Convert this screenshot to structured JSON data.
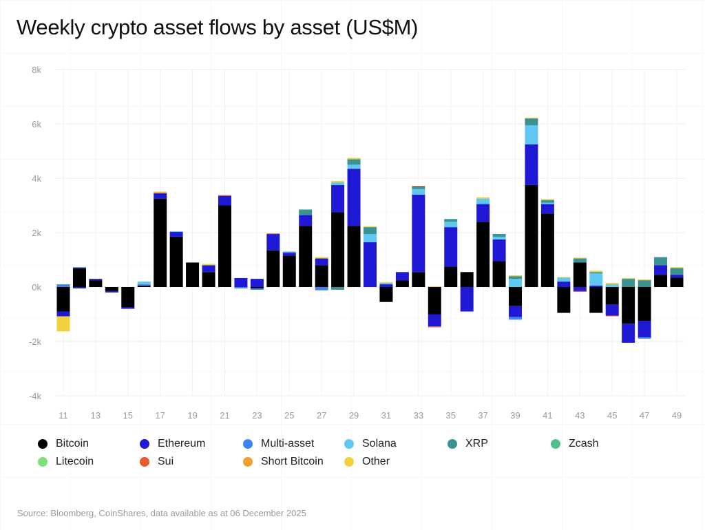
{
  "chart_data": {
    "type": "bar",
    "stacked": true,
    "title": "Weekly crypto asset flows by asset (US$M)",
    "source": "Source: Bloomberg, CoinShares, data available as at 06 December 2025",
    "ylim": [
      -4000,
      8000
    ],
    "yticks": [
      -4000,
      -2000,
      0,
      2000,
      4000,
      6000,
      8000
    ],
    "ytick_labels": [
      "-4k",
      "-2k",
      "0k",
      "2k",
      "4k",
      "6k",
      "8k"
    ],
    "grid": true,
    "legend_position": "bottom",
    "categories": [
      11,
      12,
      13,
      14,
      15,
      16,
      17,
      18,
      19,
      20,
      21,
      22,
      23,
      24,
      25,
      26,
      27,
      28,
      29,
      30,
      31,
      32,
      33,
      34,
      35,
      36,
      37,
      38,
      39,
      40,
      41,
      42,
      43,
      44,
      45,
      46,
      47,
      48,
      49
    ],
    "xtick_labels": [
      "11",
      "13",
      "15",
      "17",
      "19",
      "21",
      "23",
      "25",
      "27",
      "29",
      "31",
      "33",
      "35",
      "37",
      "39",
      "41",
      "43",
      "45",
      "47",
      "49"
    ],
    "series": [
      {
        "name": "Bitcoin",
        "color": "#000000",
        "values": [
          -900,
          700,
          250,
          -150,
          -750,
          50,
          3250,
          1850,
          900,
          550,
          3000,
          0,
          -50,
          1350,
          1150,
          2250,
          800,
          2750,
          2250,
          0,
          -550,
          250,
          550,
          -1000,
          750,
          550,
          2400,
          950,
          -700,
          3750,
          2700,
          -950,
          900,
          -950,
          -650,
          -1350,
          -1250,
          450,
          350
        ]
      },
      {
        "name": "Ethereum",
        "color": "#1f19d6",
        "values": [
          -180,
          -50,
          50,
          -50,
          -50,
          0,
          200,
          180,
          0,
          250,
          350,
          330,
          300,
          600,
          100,
          400,
          250,
          1000,
          2100,
          1650,
          100,
          300,
          2850,
          -450,
          1450,
          -900,
          650,
          800,
          -400,
          1500,
          350,
          200,
          -150,
          50,
          -400,
          -700,
          -600,
          350,
          100
        ]
      },
      {
        "name": "Multi-asset",
        "color": "#3d86f0",
        "values": [
          100,
          30,
          0,
          0,
          0,
          50,
          0,
          0,
          0,
          0,
          0,
          -50,
          -50,
          0,
          50,
          0,
          -120,
          0,
          0,
          0,
          0,
          0,
          0,
          0,
          0,
          0,
          0,
          0,
          -100,
          0,
          0,
          0,
          0,
          0,
          0,
          0,
          -50,
          0,
          0
        ]
      },
      {
        "name": "Solana",
        "color": "#5ec8f2",
        "values": [
          0,
          0,
          0,
          0,
          0,
          100,
          0,
          20,
          0,
          0,
          0,
          0,
          0,
          0,
          0,
          0,
          0,
          100,
          150,
          300,
          50,
          0,
          200,
          0,
          200,
          0,
          200,
          100,
          300,
          700,
          50,
          150,
          0,
          450,
          100,
          0,
          0,
          0,
          0
        ]
      },
      {
        "name": "XRP",
        "color": "#3a9293",
        "values": [
          0,
          0,
          0,
          0,
          0,
          0,
          0,
          0,
          0,
          0,
          0,
          0,
          0,
          0,
          0,
          200,
          0,
          -100,
          200,
          250,
          0,
          0,
          100,
          0,
          100,
          0,
          0,
          100,
          100,
          250,
          100,
          0,
          150,
          50,
          0,
          300,
          250,
          300,
          250
        ]
      },
      {
        "name": "Zcash",
        "color": "#4fc08d",
        "values": [
          0,
          0,
          0,
          0,
          0,
          0,
          0,
          0,
          0,
          0,
          0,
          0,
          0,
          0,
          0,
          0,
          0,
          0,
          0,
          0,
          0,
          0,
          0,
          0,
          0,
          0,
          0,
          0,
          0,
          0,
          0,
          0,
          0,
          0,
          0,
          0,
          0,
          0,
          0
        ]
      },
      {
        "name": "Litecoin",
        "color": "#7fe07a",
        "values": [
          0,
          0,
          0,
          0,
          0,
          0,
          0,
          0,
          0,
          0,
          0,
          0,
          0,
          0,
          0,
          0,
          0,
          0,
          0,
          0,
          0,
          0,
          0,
          0,
          0,
          0,
          0,
          0,
          0,
          0,
          0,
          0,
          0,
          0,
          0,
          0,
          0,
          0,
          0
        ]
      },
      {
        "name": "Sui",
        "color": "#e8592e",
        "values": [
          0,
          0,
          0,
          0,
          0,
          0,
          0,
          0,
          0,
          0,
          30,
          0,
          0,
          20,
          0,
          0,
          0,
          0,
          0,
          0,
          0,
          0,
          20,
          -30,
          0,
          0,
          0,
          0,
          0,
          0,
          0,
          0,
          -20,
          0,
          -20,
          0,
          0,
          0,
          0
        ]
      },
      {
        "name": "Short Bitcoin",
        "color": "#f0a030",
        "values": [
          0,
          0,
          0,
          0,
          0,
          0,
          40,
          0,
          0,
          0,
          0,
          0,
          0,
          0,
          0,
          0,
          0,
          0,
          0,
          0,
          0,
          0,
          0,
          0,
          0,
          0,
          0,
          0,
          0,
          0,
          0,
          0,
          0,
          0,
          0,
          0,
          0,
          0,
          0
        ]
      },
      {
        "name": "Other",
        "color": "#f2d13f",
        "values": [
          -550,
          0,
          0,
          0,
          0,
          0,
          20,
          0,
          0,
          50,
          0,
          0,
          0,
          0,
          0,
          0,
          50,
          50,
          50,
          30,
          30,
          0,
          0,
          30,
          0,
          0,
          50,
          0,
          30,
          30,
          30,
          20,
          30,
          50,
          50,
          30,
          30,
          0,
          30
        ]
      }
    ]
  }
}
